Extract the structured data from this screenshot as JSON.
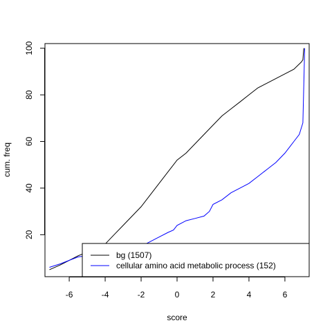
{
  "chart_data": {
    "type": "line",
    "title": "",
    "xlabel": "score",
    "ylabel": "cum. freq",
    "xlim": [
      -7.35,
      7.35
    ],
    "ylim": [
      2,
      102
    ],
    "xticks": [
      -6,
      -4,
      -2,
      0,
      2,
      4,
      6
    ],
    "yticks": [
      20,
      40,
      60,
      80,
      100
    ],
    "grid": false,
    "legend": "bottom-right",
    "series": [
      {
        "name": "bg (1507)",
        "color": "#000000",
        "x": [
          -7.1,
          -6.5,
          -6,
          -5.5,
          -5,
          -4.6,
          -4.3,
          -4,
          -3.5,
          -3,
          -2.5,
          -2,
          -1.5,
          -1,
          -0.5,
          0,
          0.5,
          1,
          1.5,
          2,
          2.5,
          3,
          3.5,
          4,
          4.5,
          5,
          5.5,
          6,
          6.5,
          6.9,
          7,
          7.05
        ],
        "y": [
          5,
          7,
          9,
          11,
          12.5,
          13.5,
          14.5,
          16,
          20,
          24,
          28,
          32,
          37,
          42,
          47,
          52,
          55,
          59,
          63,
          67,
          71,
          74,
          77,
          80,
          83,
          85,
          87,
          89,
          91,
          94,
          95,
          100
        ]
      },
      {
        "name": "cellular amino acid metabolic process (152)",
        "color": "#0000ff",
        "x": [
          -7.1,
          -6.5,
          -6,
          -5.5,
          -5,
          -4.5,
          -4,
          -3.5,
          -3,
          -2.5,
          -2,
          -1.5,
          -1,
          -0.5,
          -0.2,
          0,
          0.5,
          1,
          1.5,
          1.8,
          2,
          2.5,
          3,
          3.5,
          4,
          4.5,
          5,
          5.5,
          6,
          6.3,
          6.5,
          6.8,
          7,
          7.1
        ],
        "y": [
          6,
          7.5,
          9,
          10.5,
          11,
          11.5,
          12,
          12.5,
          13,
          13.5,
          15,
          17,
          19,
          21,
          22,
          24,
          26,
          27,
          28,
          30,
          33,
          35,
          38,
          40,
          42,
          45,
          48,
          51,
          55,
          58,
          60,
          63,
          68,
          100
        ]
      }
    ]
  }
}
